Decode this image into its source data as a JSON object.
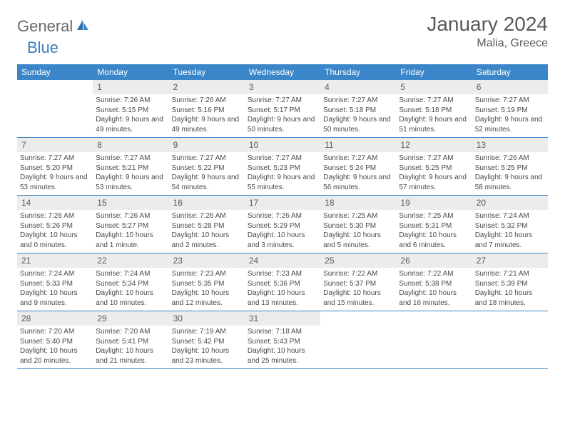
{
  "logo": {
    "text1": "General",
    "text2": "Blue"
  },
  "title": "January 2024",
  "location": "Malia, Greece",
  "weekdays": [
    "Sunday",
    "Monday",
    "Tuesday",
    "Wednesday",
    "Thursday",
    "Friday",
    "Saturday"
  ],
  "colors": {
    "header_bar": "#3a86c8",
    "daynum_bg": "#ececec",
    "text_gray": "#5a5a5a",
    "logo_gray": "#6b6b6b",
    "logo_blue": "#3a7ebf",
    "border": "#3a86c8"
  },
  "weeks": [
    [
      {
        "n": "",
        "sr": "",
        "ss": "",
        "dl": ""
      },
      {
        "n": "1",
        "sr": "Sunrise: 7:26 AM",
        "ss": "Sunset: 5:15 PM",
        "dl": "Daylight: 9 hours and 49 minutes."
      },
      {
        "n": "2",
        "sr": "Sunrise: 7:26 AM",
        "ss": "Sunset: 5:16 PM",
        "dl": "Daylight: 9 hours and 49 minutes."
      },
      {
        "n": "3",
        "sr": "Sunrise: 7:27 AM",
        "ss": "Sunset: 5:17 PM",
        "dl": "Daylight: 9 hours and 50 minutes."
      },
      {
        "n": "4",
        "sr": "Sunrise: 7:27 AM",
        "ss": "Sunset: 5:18 PM",
        "dl": "Daylight: 9 hours and 50 minutes."
      },
      {
        "n": "5",
        "sr": "Sunrise: 7:27 AM",
        "ss": "Sunset: 5:18 PM",
        "dl": "Daylight: 9 hours and 51 minutes."
      },
      {
        "n": "6",
        "sr": "Sunrise: 7:27 AM",
        "ss": "Sunset: 5:19 PM",
        "dl": "Daylight: 9 hours and 52 minutes."
      }
    ],
    [
      {
        "n": "7",
        "sr": "Sunrise: 7:27 AM",
        "ss": "Sunset: 5:20 PM",
        "dl": "Daylight: 9 hours and 53 minutes."
      },
      {
        "n": "8",
        "sr": "Sunrise: 7:27 AM",
        "ss": "Sunset: 5:21 PM",
        "dl": "Daylight: 9 hours and 53 minutes."
      },
      {
        "n": "9",
        "sr": "Sunrise: 7:27 AM",
        "ss": "Sunset: 5:22 PM",
        "dl": "Daylight: 9 hours and 54 minutes."
      },
      {
        "n": "10",
        "sr": "Sunrise: 7:27 AM",
        "ss": "Sunset: 5:23 PM",
        "dl": "Daylight: 9 hours and 55 minutes."
      },
      {
        "n": "11",
        "sr": "Sunrise: 7:27 AM",
        "ss": "Sunset: 5:24 PM",
        "dl": "Daylight: 9 hours and 56 minutes."
      },
      {
        "n": "12",
        "sr": "Sunrise: 7:27 AM",
        "ss": "Sunset: 5:25 PM",
        "dl": "Daylight: 9 hours and 57 minutes."
      },
      {
        "n": "13",
        "sr": "Sunrise: 7:26 AM",
        "ss": "Sunset: 5:25 PM",
        "dl": "Daylight: 9 hours and 58 minutes."
      }
    ],
    [
      {
        "n": "14",
        "sr": "Sunrise: 7:26 AM",
        "ss": "Sunset: 5:26 PM",
        "dl": "Daylight: 10 hours and 0 minutes."
      },
      {
        "n": "15",
        "sr": "Sunrise: 7:26 AM",
        "ss": "Sunset: 5:27 PM",
        "dl": "Daylight: 10 hours and 1 minute."
      },
      {
        "n": "16",
        "sr": "Sunrise: 7:26 AM",
        "ss": "Sunset: 5:28 PM",
        "dl": "Daylight: 10 hours and 2 minutes."
      },
      {
        "n": "17",
        "sr": "Sunrise: 7:26 AM",
        "ss": "Sunset: 5:29 PM",
        "dl": "Daylight: 10 hours and 3 minutes."
      },
      {
        "n": "18",
        "sr": "Sunrise: 7:25 AM",
        "ss": "Sunset: 5:30 PM",
        "dl": "Daylight: 10 hours and 5 minutes."
      },
      {
        "n": "19",
        "sr": "Sunrise: 7:25 AM",
        "ss": "Sunset: 5:31 PM",
        "dl": "Daylight: 10 hours and 6 minutes."
      },
      {
        "n": "20",
        "sr": "Sunrise: 7:24 AM",
        "ss": "Sunset: 5:32 PM",
        "dl": "Daylight: 10 hours and 7 minutes."
      }
    ],
    [
      {
        "n": "21",
        "sr": "Sunrise: 7:24 AM",
        "ss": "Sunset: 5:33 PM",
        "dl": "Daylight: 10 hours and 9 minutes."
      },
      {
        "n": "22",
        "sr": "Sunrise: 7:24 AM",
        "ss": "Sunset: 5:34 PM",
        "dl": "Daylight: 10 hours and 10 minutes."
      },
      {
        "n": "23",
        "sr": "Sunrise: 7:23 AM",
        "ss": "Sunset: 5:35 PM",
        "dl": "Daylight: 10 hours and 12 minutes."
      },
      {
        "n": "24",
        "sr": "Sunrise: 7:23 AM",
        "ss": "Sunset: 5:36 PM",
        "dl": "Daylight: 10 hours and 13 minutes."
      },
      {
        "n": "25",
        "sr": "Sunrise: 7:22 AM",
        "ss": "Sunset: 5:37 PM",
        "dl": "Daylight: 10 hours and 15 minutes."
      },
      {
        "n": "26",
        "sr": "Sunrise: 7:22 AM",
        "ss": "Sunset: 5:38 PM",
        "dl": "Daylight: 10 hours and 16 minutes."
      },
      {
        "n": "27",
        "sr": "Sunrise: 7:21 AM",
        "ss": "Sunset: 5:39 PM",
        "dl": "Daylight: 10 hours and 18 minutes."
      }
    ],
    [
      {
        "n": "28",
        "sr": "Sunrise: 7:20 AM",
        "ss": "Sunset: 5:40 PM",
        "dl": "Daylight: 10 hours and 20 minutes."
      },
      {
        "n": "29",
        "sr": "Sunrise: 7:20 AM",
        "ss": "Sunset: 5:41 PM",
        "dl": "Daylight: 10 hours and 21 minutes."
      },
      {
        "n": "30",
        "sr": "Sunrise: 7:19 AM",
        "ss": "Sunset: 5:42 PM",
        "dl": "Daylight: 10 hours and 23 minutes."
      },
      {
        "n": "31",
        "sr": "Sunrise: 7:18 AM",
        "ss": "Sunset: 5:43 PM",
        "dl": "Daylight: 10 hours and 25 minutes."
      },
      {
        "n": "",
        "sr": "",
        "ss": "",
        "dl": ""
      },
      {
        "n": "",
        "sr": "",
        "ss": "",
        "dl": ""
      },
      {
        "n": "",
        "sr": "",
        "ss": "",
        "dl": ""
      }
    ]
  ]
}
